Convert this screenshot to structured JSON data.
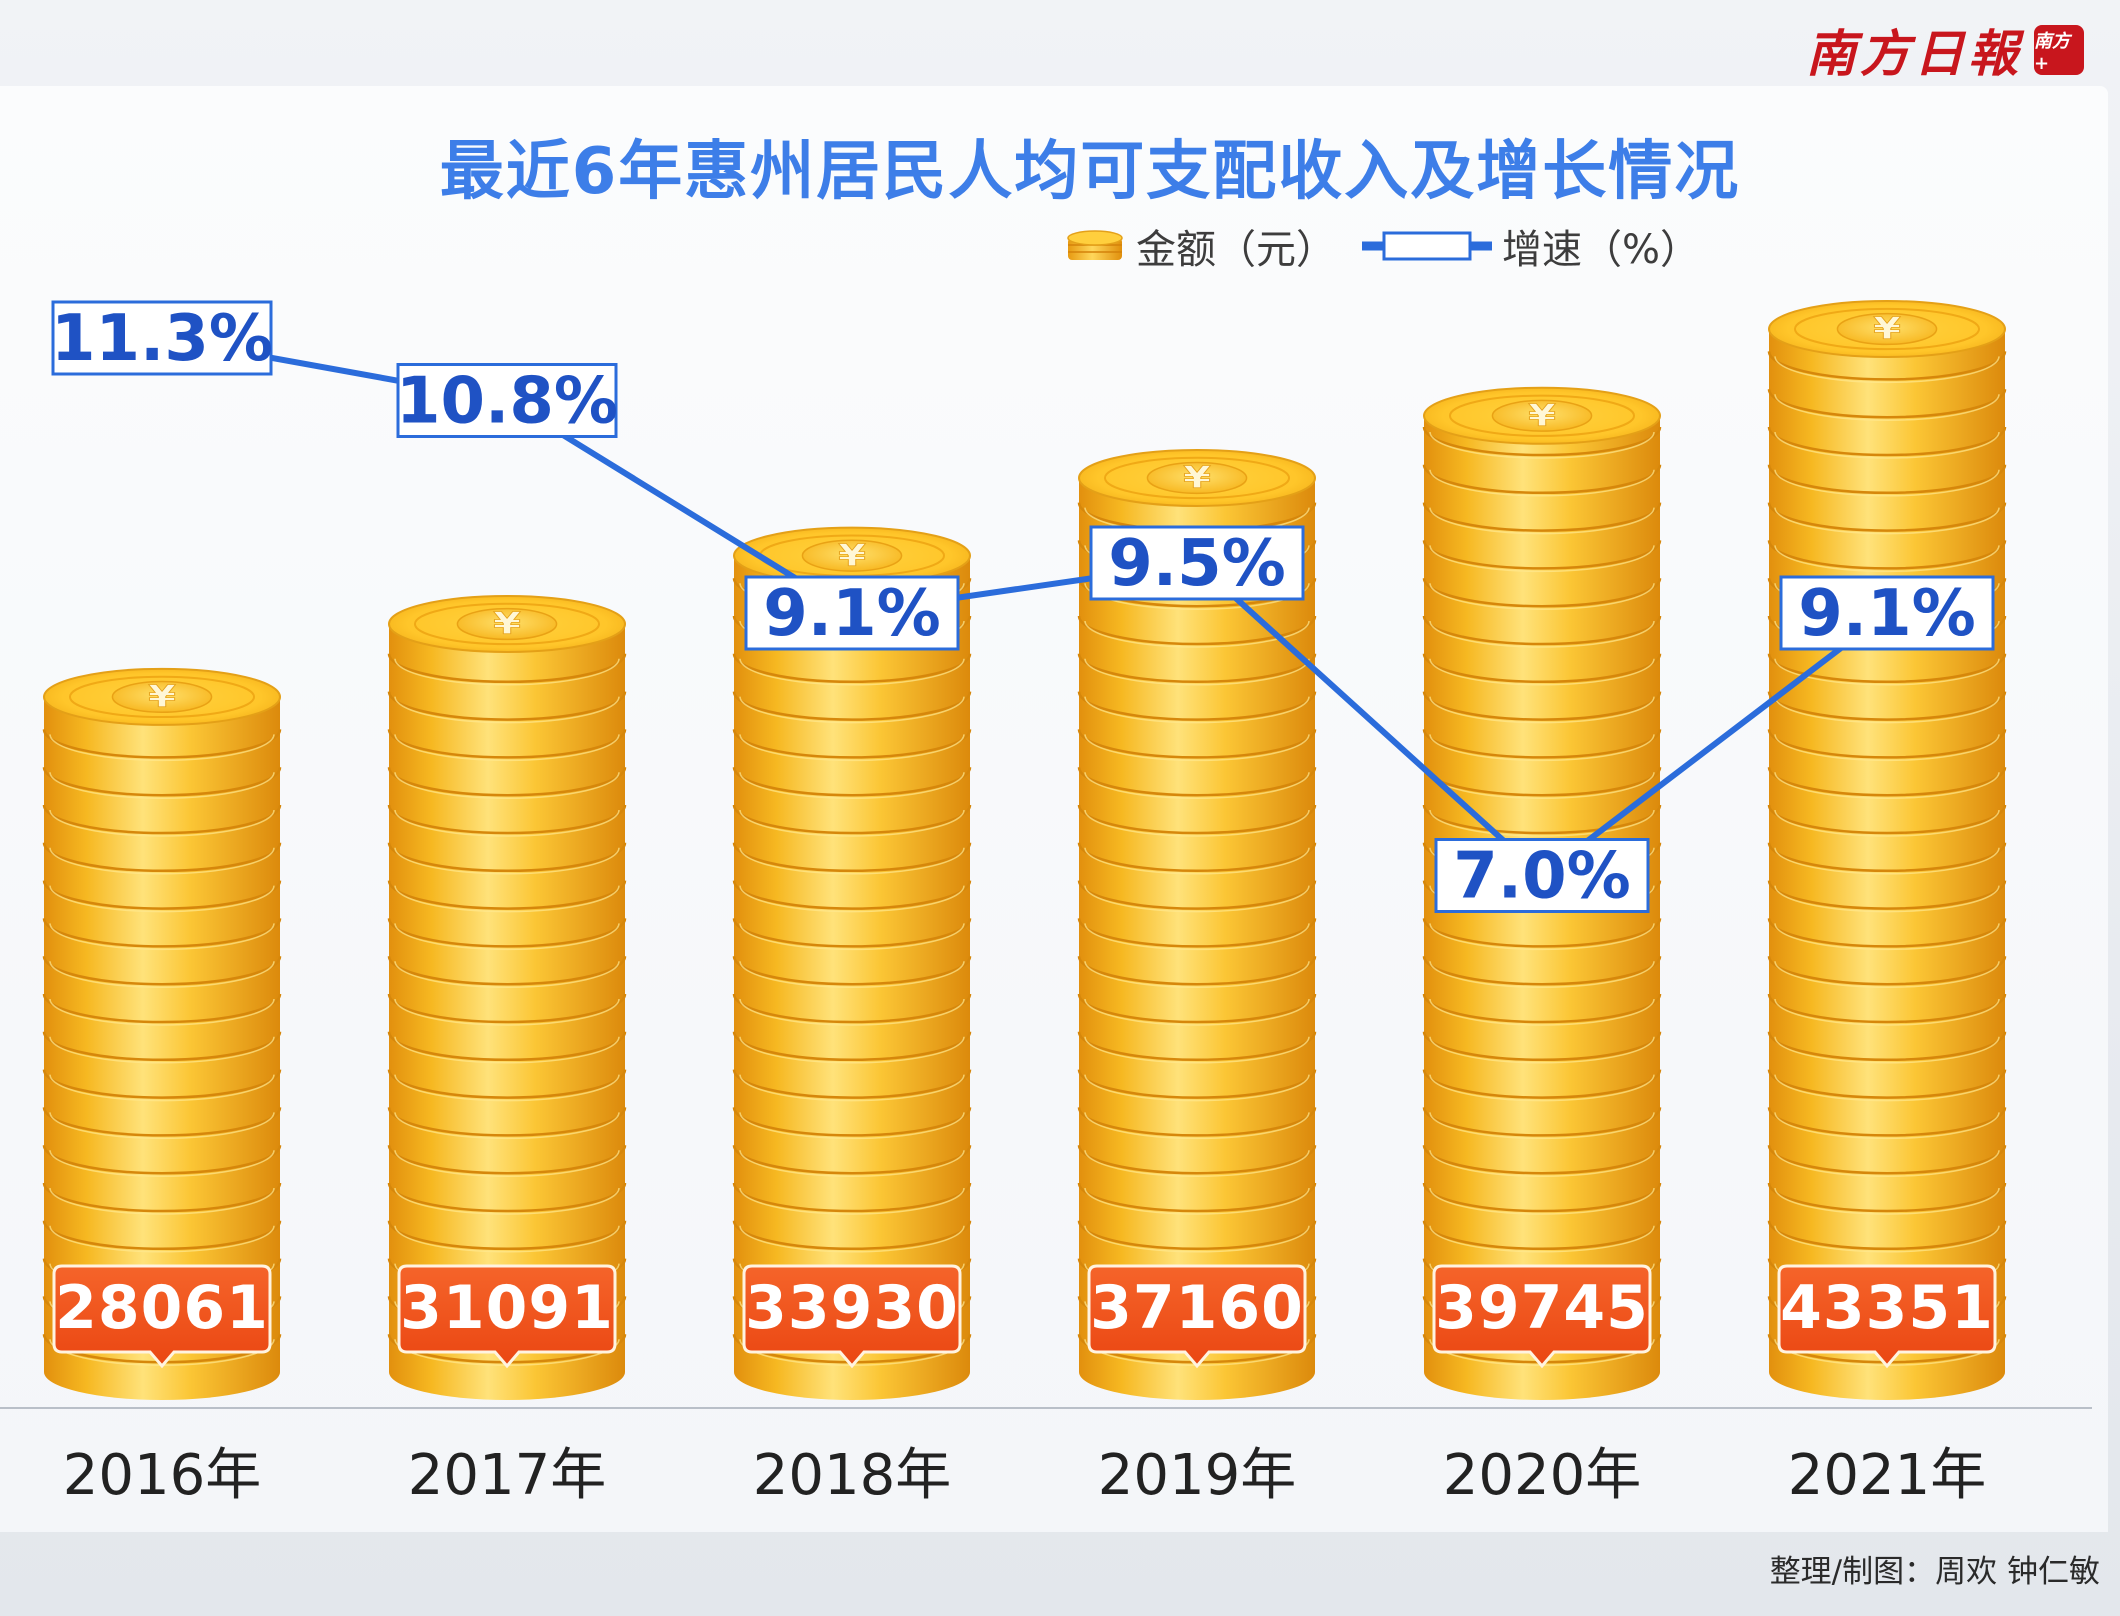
{
  "chart_data": {
    "type": "bar",
    "title": "最近6年惠州居民人均可支配收入及增长情况",
    "categories": [
      "2016年",
      "2017年",
      "2018年",
      "2019年",
      "2020年",
      "2021年"
    ],
    "series": [
      {
        "name": "金额（元）",
        "kind": "bar",
        "values": [
          28061,
          31091,
          33930,
          37160,
          39745,
          43351
        ],
        "labels": [
          "28061",
          "31091",
          "33930",
          "37160",
          "39745",
          "43351"
        ]
      },
      {
        "name": "增速（%）",
        "kind": "line",
        "values": [
          11.3,
          10.8,
          9.1,
          9.5,
          7.0,
          9.1
        ],
        "labels": [
          "11.3%",
          "10.8%",
          "9.1%",
          "9.5%",
          "7.0%",
          "9.1%"
        ]
      }
    ],
    "grid": false,
    "legend_position": "top-right"
  },
  "legend": {
    "amount_label": "金额（元）",
    "growth_label": "增速（%）"
  },
  "coin_symbol": "¥",
  "masthead": {
    "name": "南方日報",
    "seal": "南方+"
  },
  "credit": "整理/制图：周欢 钟仁敏",
  "colors": {
    "title": "#3d7ee8",
    "line": "#2b6cdb",
    "label_border": "#2b6cdb",
    "label_text": "#1f52c4",
    "value_badge": "#f0501c",
    "coin_gold": "#f6b81e",
    "masthead_red": "#c8161d"
  }
}
